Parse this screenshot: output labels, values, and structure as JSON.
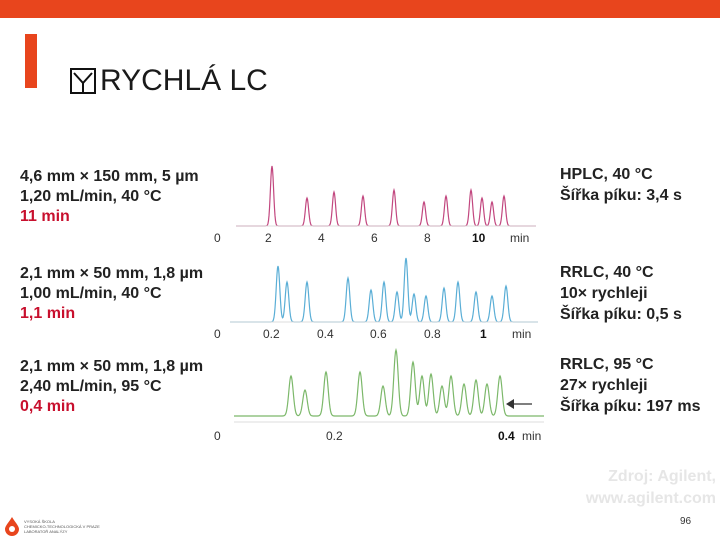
{
  "slide": {
    "title": "RYCHLÁ LC",
    "page_number": "96",
    "source_line1": "Zdroj: Agilent,",
    "source_line2": "www.agilent.com",
    "logo_text1": "VYSOKÁ ŠKOLA",
    "logo_text2": "CHEMICKO-TECHNOLOGICKÁ V PRAZE",
    "logo_text3": "LABORATOŘ ANALÝZY"
  },
  "rows": [
    {
      "line1": "4,6 mm × 150 mm, 5 µm",
      "line2": "1,20 mL/min, 40 °C",
      "line3": "11 min",
      "info1": "HPLC, 40 °C",
      "info2": "Šířka píku: 3,4 s",
      "info3": "",
      "color": "#c2477f",
      "axis_ticks": [
        "0",
        "2",
        "4",
        "6",
        "8",
        "10"
      ],
      "axis_unit": "min"
    },
    {
      "line1": "2,1 mm × 50 mm, 1,8 µm",
      "line2": "1,00 mL/min, 40 °C",
      "line3": "1,1 min",
      "info1": "RRLC, 40 °C",
      "info2": "10× rychleji",
      "info3": "Šířka píku: 0,5 s",
      "color": "#5aaed6",
      "axis_ticks": [
        "0",
        "0.2",
        "0.4",
        "0.6",
        "0.8",
        "1"
      ],
      "axis_unit": "min"
    },
    {
      "line1": "2,1 mm × 50 mm, 1,8 µm",
      "line2": "2,40 mL/min, 95 °C",
      "line3": "0,4 min",
      "info1": "RRLC, 95 °C",
      "info2": "27× rychleji",
      "info3": "Šířka píku: 197 ms",
      "color": "#7cb86a",
      "axis_ticks": [
        "0",
        "0.2",
        "0.4"
      ],
      "axis_unit": "min"
    }
  ]
}
